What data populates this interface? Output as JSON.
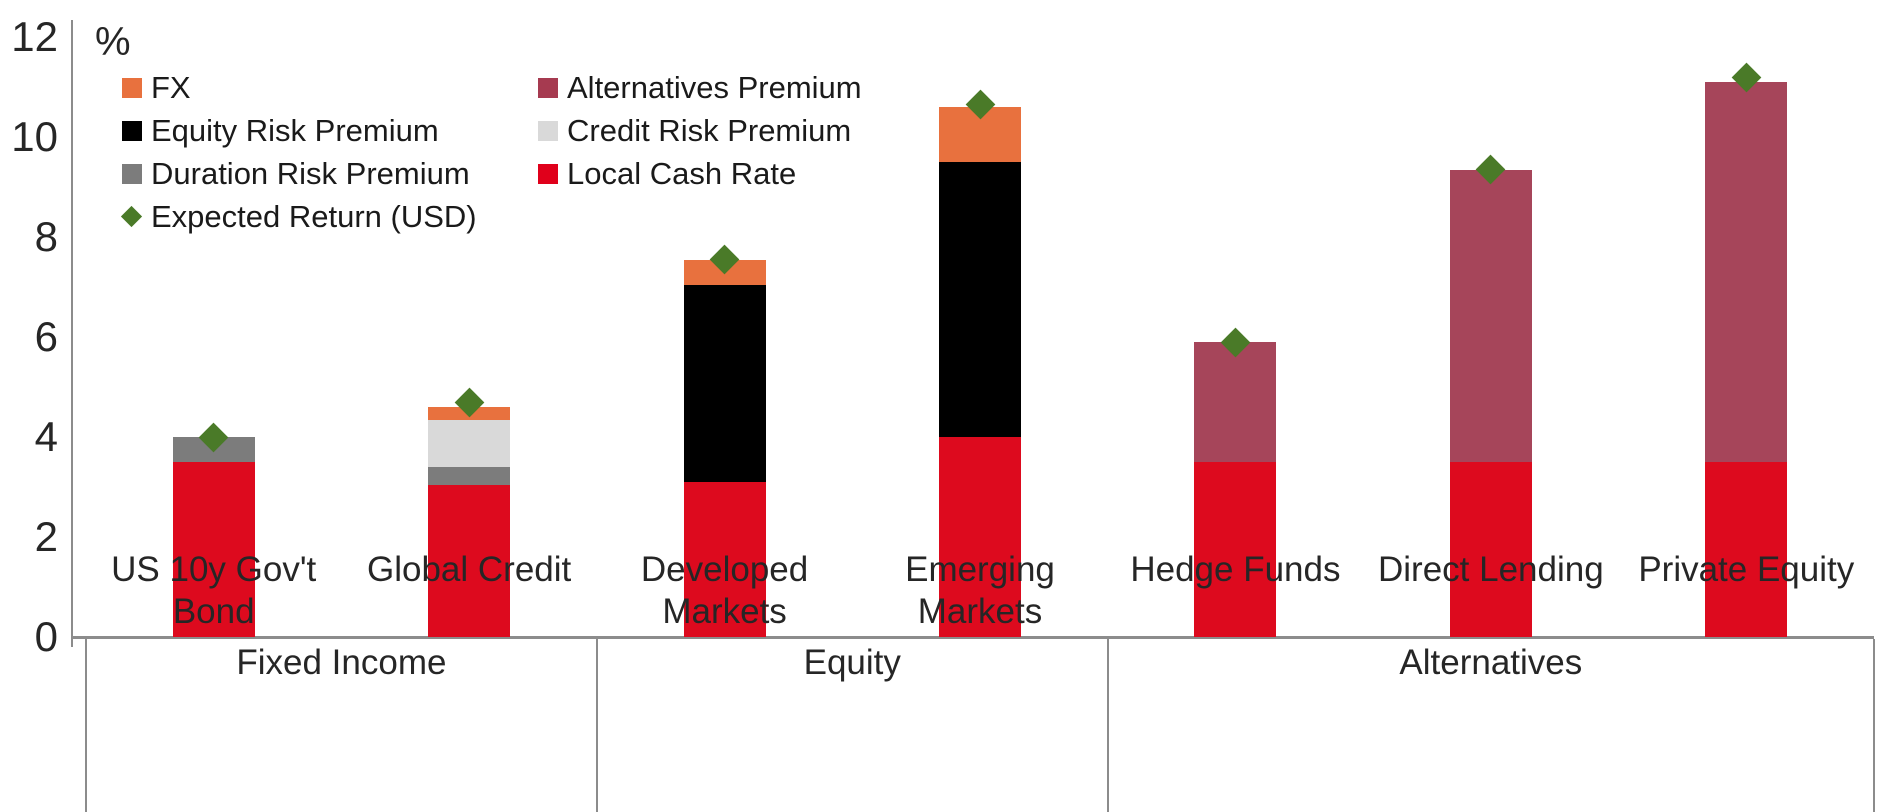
{
  "chart_data": {
    "type": "bar",
    "stacked": true,
    "title": "",
    "ylabel": "%",
    "xlabel": "",
    "ylim": [
      0,
      12
    ],
    "yticks": [
      12,
      10,
      8,
      6,
      4,
      2,
      0
    ],
    "grid": false,
    "legend_position": "top-left-inside",
    "groups": [
      {
        "label": "Fixed Income",
        "categories": [
          [
            "US 10y Gov't",
            "Bond"
          ],
          [
            "Global Credit"
          ]
        ]
      },
      {
        "label": "Equity",
        "categories": [
          [
            "Developed",
            "Markets"
          ],
          [
            "Emerging",
            "Markets"
          ]
        ]
      },
      {
        "label": "Alternatives",
        "categories": [
          [
            "Hedge Funds"
          ],
          [
            "Direct Lending"
          ],
          [
            "Private Equity"
          ]
        ]
      }
    ],
    "series": [
      {
        "name": "Local Cash Rate",
        "color": "#dd0a1e",
        "values": [
          3.5,
          3.05,
          3.1,
          4.0,
          3.5,
          3.5,
          3.5
        ]
      },
      {
        "name": "Duration Risk Premium",
        "color": "#7c7c7c",
        "values": [
          0.5,
          0.35,
          0,
          0,
          0,
          0,
          0
        ]
      },
      {
        "name": "Credit Risk Premium",
        "color": "#d9d9d9",
        "values": [
          0,
          0.95,
          0,
          0,
          0,
          0,
          0
        ]
      },
      {
        "name": "Equity Risk Premium",
        "color": "#000000",
        "values": [
          0,
          0,
          3.95,
          5.5,
          0,
          0,
          0
        ]
      },
      {
        "name": "Alternatives Premium",
        "color": "#a6455a",
        "values": [
          0,
          0,
          0,
          0,
          2.4,
          5.85,
          7.6
        ]
      },
      {
        "name": "FX",
        "color": "#e8713e",
        "values": [
          0,
          0.25,
          0.5,
          1.1,
          0,
          0,
          0
        ]
      }
    ],
    "marker_series": {
      "name": "Expected Return (USD)",
      "shape": "diamond",
      "color": "#4a7a28",
      "values": [
        4.0,
        4.7,
        7.55,
        10.65,
        5.9,
        9.35,
        11.2
      ]
    },
    "bar_totals": [
      4.0,
      4.6,
      7.55,
      10.6,
      5.9,
      9.35,
      11.1
    ],
    "legend": {
      "columns": [
        [
          {
            "name": "FX",
            "color": "#e8713e",
            "shape": "square"
          },
          {
            "name": "Equity Risk Premium",
            "color": "#000000",
            "shape": "square"
          },
          {
            "name": "Duration Risk Premium",
            "color": "#7c7c7c",
            "shape": "square"
          },
          {
            "name": "Expected Return (USD)",
            "color": "#4a7a28",
            "shape": "diamond"
          }
        ],
        [
          {
            "name": "Alternatives Premium",
            "color": "#a63a50",
            "shape": "square"
          },
          {
            "name": "Credit Risk Premium",
            "color": "#d9d9d9",
            "shape": "square"
          },
          {
            "name": "Local Cash Rate",
            "color": "#e0001b",
            "shape": "square"
          }
        ]
      ]
    },
    "axis_color": "#8c8c8c"
  }
}
